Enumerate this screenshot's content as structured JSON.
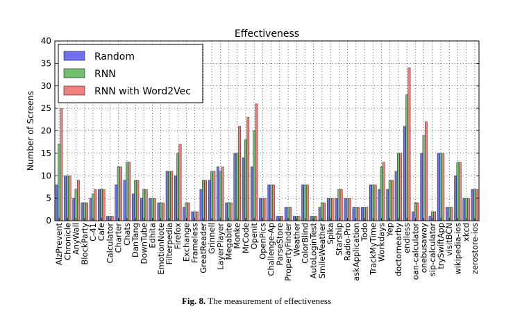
{
  "chart_data": {
    "type": "bar",
    "title": "Effectiveness",
    "xlabel": "",
    "ylabel": "Number of Screens",
    "ylim": [
      0,
      40
    ],
    "yticks": [
      0,
      5,
      10,
      15,
      20,
      25,
      30,
      35,
      40
    ],
    "grid": true,
    "legend_position": "top-left",
    "categories": [
      "AlzPrevent",
      "Chronicle",
      "AnyWall",
      "BlockParty",
      "C-41",
      "Cafe",
      "Calculator",
      "Charter",
      "Chats",
      "DanTang",
      "DownTube",
      "Edhita",
      "EmotionNote",
      "Filterpedia",
      "Firefox",
      "Exchange",
      "Frameless",
      "GreatReader",
      "Grinnell",
      "LayerPlayer",
      "Megabite",
      "Monke",
      "MrCode",
      "Openit",
      "OpenPics",
      "Challenge-Ap",
      "ParseStore",
      "PropertyFinder",
      "Weather",
      "ColorBlind",
      "AutoLoginTest",
      "SmileWeather",
      "Spika",
      "Starship",
      "Radio-Pro",
      "askApplication",
      "Todo",
      "TrackMyTime",
      "Workdays",
      "Yep",
      "doctornearby",
      "endless",
      "oan-calculator",
      "onebusaway",
      "sip-calculator",
      "trySwiftApp",
      "visitBCN",
      "wikipedia-ios",
      "xkcd",
      "zerostore-ios"
    ],
    "series": [
      {
        "name": "Random",
        "color": "#7070f0",
        "values": [
          8,
          10,
          5,
          4,
          5,
          7,
          1,
          8,
          9,
          6,
          5,
          5,
          4,
          11,
          10,
          3,
          2,
          7,
          9,
          12,
          4,
          15,
          14,
          12,
          5,
          8,
          1,
          3,
          1,
          8,
          1,
          3,
          5,
          5,
          5,
          3,
          3,
          8,
          7,
          7,
          11,
          21,
          2,
          15,
          1,
          15,
          3,
          10,
          5,
          7
        ]
      },
      {
        "name": "RNN",
        "color": "#70c070",
        "values": [
          17,
          10,
          7,
          4,
          6,
          7,
          1,
          12,
          13,
          9,
          7,
          5,
          4,
          11,
          15,
          4,
          2,
          9,
          11,
          11,
          4,
          15,
          18,
          20,
          5,
          8,
          1,
          3,
          1,
          8,
          1,
          4,
          5,
          7,
          5,
          3,
          3,
          8,
          12,
          9,
          15,
          28,
          4,
          19,
          2,
          15,
          3,
          13,
          5,
          7
        ]
      },
      {
        "name": "RNN with Word2Vec",
        "color": "#f08080",
        "values": [
          25,
          10,
          9,
          4,
          7,
          7,
          1,
          12,
          13,
          9,
          7,
          5,
          4,
          11,
          17,
          4,
          2,
          9,
          11,
          12,
          4,
          21,
          23,
          26,
          5,
          8,
          1,
          3,
          1,
          8,
          1,
          4,
          5,
          7,
          5,
          3,
          3,
          8,
          13,
          9,
          15,
          34,
          4,
          22,
          2,
          15,
          3,
          13,
          5,
          7
        ]
      }
    ]
  },
  "caption": {
    "label": "Fig. 8.",
    "text": "The measurement of effectiveness"
  }
}
